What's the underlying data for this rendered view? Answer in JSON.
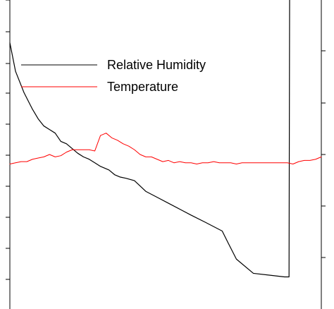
{
  "chart_data": {
    "type": "line",
    "title": "",
    "xlabel": "",
    "ylabel": "",
    "grid": false,
    "legend": {
      "placement": "top-left",
      "entries": [
        "Relative Humidity",
        "Temperature"
      ]
    },
    "colors": {
      "Relative Humidity": "#000000",
      "Temperature": "#ff0000"
    },
    "series": [
      {
        "name": "Relative Humidity",
        "points": [
          [
            0,
            0.97
          ],
          [
            10,
            0.85
          ],
          [
            25,
            0.76
          ],
          [
            40,
            0.69
          ],
          [
            50,
            0.65
          ],
          [
            60,
            0.62
          ],
          [
            70,
            0.605
          ],
          [
            80,
            0.59
          ],
          [
            90,
            0.555
          ],
          [
            100,
            0.545
          ],
          [
            110,
            0.525
          ],
          [
            120,
            0.505
          ],
          [
            130,
            0.49
          ],
          [
            140,
            0.48
          ],
          [
            150,
            0.465
          ],
          [
            160,
            0.45
          ],
          [
            175,
            0.435
          ],
          [
            185,
            0.415
          ],
          [
            195,
            0.405
          ],
          [
            205,
            0.4
          ],
          [
            220,
            0.39
          ],
          [
            240,
            0.345
          ],
          [
            260,
            0.32
          ],
          [
            280,
            0.295
          ],
          [
            300,
            0.27
          ],
          [
            320,
            0.245
          ],
          [
            345,
            0.215
          ],
          [
            375,
            0.178
          ],
          [
            385,
            0.13
          ],
          [
            400,
            0.06
          ],
          [
            430,
            0.0
          ],
          [
            485,
            -0.015
          ],
          [
            493,
            -0.015
          ],
          [
            494,
            1.15
          ]
        ]
      },
      {
        "name": "Temperature",
        "points": [
          [
            0,
            0.46
          ],
          [
            10,
            0.465
          ],
          [
            20,
            0.47
          ],
          [
            30,
            0.47
          ],
          [
            40,
            0.48
          ],
          [
            50,
            0.485
          ],
          [
            60,
            0.49
          ],
          [
            70,
            0.5
          ],
          [
            80,
            0.49
          ],
          [
            90,
            0.495
          ],
          [
            100,
            0.51
          ],
          [
            110,
            0.52
          ],
          [
            120,
            0.52
          ],
          [
            130,
            0.52
          ],
          [
            140,
            0.52
          ],
          [
            150,
            0.515
          ],
          [
            160,
            0.58
          ],
          [
            170,
            0.59
          ],
          [
            180,
            0.57
          ],
          [
            190,
            0.56
          ],
          [
            200,
            0.545
          ],
          [
            210,
            0.535
          ],
          [
            220,
            0.52
          ],
          [
            230,
            0.5
          ],
          [
            240,
            0.49
          ],
          [
            250,
            0.49
          ],
          [
            260,
            0.48
          ],
          [
            270,
            0.47
          ],
          [
            280,
            0.475
          ],
          [
            290,
            0.465
          ],
          [
            300,
            0.47
          ],
          [
            310,
            0.465
          ],
          [
            320,
            0.465
          ],
          [
            330,
            0.46
          ],
          [
            340,
            0.465
          ],
          [
            350,
            0.465
          ],
          [
            360,
            0.47
          ],
          [
            370,
            0.465
          ],
          [
            380,
            0.465
          ],
          [
            390,
            0.465
          ],
          [
            400,
            0.46
          ],
          [
            410,
            0.465
          ],
          [
            420,
            0.465
          ],
          [
            430,
            0.465
          ],
          [
            440,
            0.465
          ],
          [
            450,
            0.465
          ],
          [
            460,
            0.465
          ],
          [
            470,
            0.465
          ],
          [
            480,
            0.465
          ],
          [
            490,
            0.465
          ],
          [
            500,
            0.46
          ],
          [
            510,
            0.47
          ],
          [
            520,
            0.475
          ],
          [
            530,
            0.475
          ],
          [
            540,
            0.48
          ],
          [
            550,
            0.49
          ]
        ]
      }
    ],
    "x_range": [
      0,
      550
    ],
    "y_range": [
      1.15,
      -0.15
    ]
  }
}
